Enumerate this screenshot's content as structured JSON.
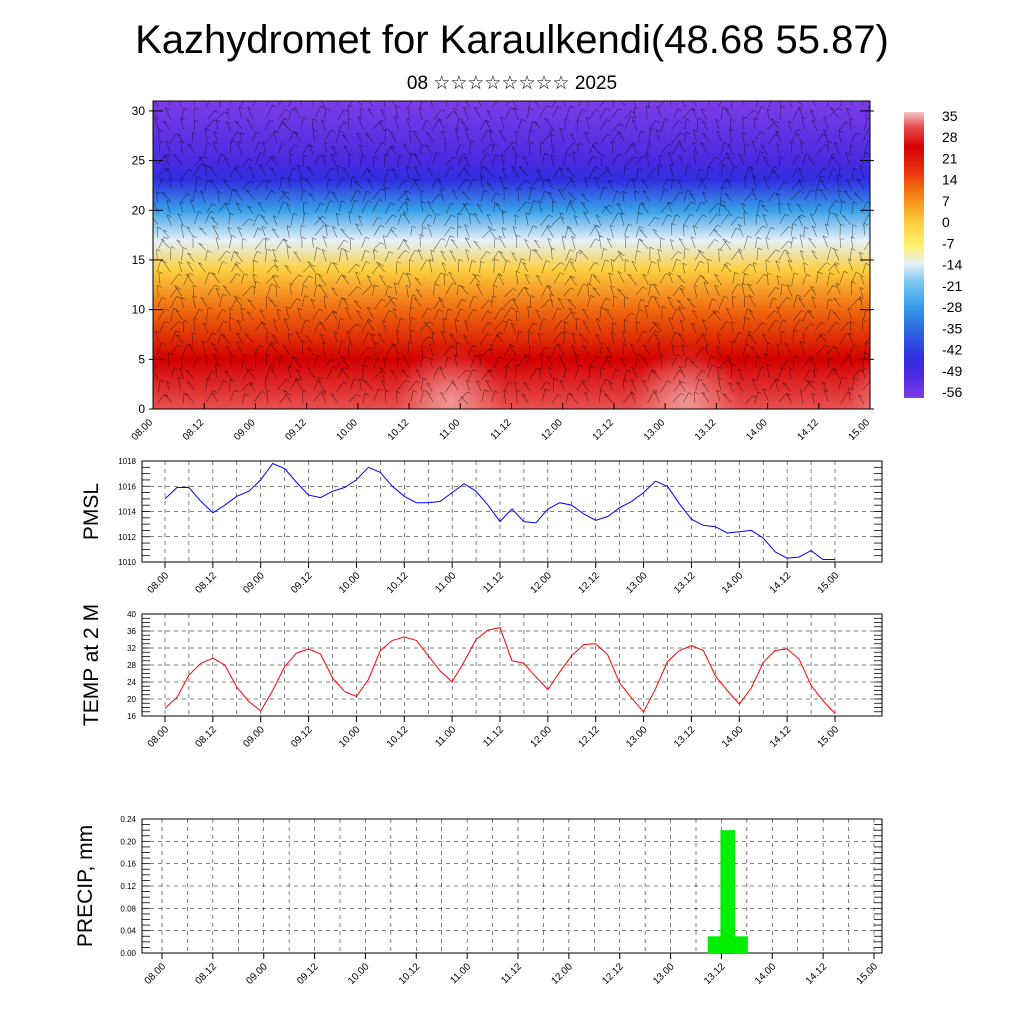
{
  "title": "Kazhydromet for Karaulkendi(48.68 55.87)",
  "subtitle": "08 ☆☆☆☆☆☆☆☆ 2025",
  "chart_data": [
    {
      "type": "heatmap",
      "panel": "cross-section",
      "x_ticks": [
        "08.00",
        "08.12",
        "09.00",
        "09.12",
        "10.00",
        "10.12",
        "11.00",
        "11.12",
        "12.00",
        "12.12",
        "13.00",
        "13.12",
        "14.00",
        "14.12",
        "15.00"
      ],
      "y_ticks": [
        "0",
        "5",
        "10",
        "15",
        "20",
        "25",
        "30"
      ],
      "ylim": [
        0,
        31
      ],
      "colorbar_labels": [
        "35",
        "28",
        "21",
        "14",
        "7",
        "0",
        "-7",
        "-14",
        "-21",
        "-28",
        "-35",
        "-42",
        "-49",
        "-56"
      ],
      "colorbar_range": [
        -60,
        38
      ],
      "colors": {
        "warm": "#cc0000",
        "hot": "#f4a0a0",
        "mild": "#ffe040",
        "cool": "#6ab8f0",
        "cold": "#3c2cdc",
        "coldest": "#7e3ce8"
      },
      "description_levels": [
        {
          "height": 0,
          "temp": 33
        },
        {
          "height": 5,
          "temp": 26
        },
        {
          "height": 10,
          "temp": 14
        },
        {
          "height": 14,
          "temp": 3
        },
        {
          "height": 17,
          "temp": -12
        },
        {
          "height": 20,
          "temp": -28
        },
        {
          "height": 23,
          "temp": -45
        },
        {
          "height": 25,
          "temp": -55
        },
        {
          "height": 31,
          "temp": -57
        }
      ]
    },
    {
      "type": "line",
      "ylabel": "PMSL",
      "ylim": [
        1010,
        1018
      ],
      "y_ticks": [
        "1010",
        "1012",
        "1014",
        "1016",
        "1018"
      ],
      "x_ticks": [
        "08.00",
        "08.12",
        "09.00",
        "09.12",
        "10.00",
        "10.12",
        "11.00",
        "11.12",
        "12.00",
        "12.12",
        "13.00",
        "13.12",
        "14.00",
        "14.12",
        "15.00"
      ],
      "color": "#0000ff",
      "values": [
        1015.0,
        1015.9,
        1015.9,
        1014.8,
        1013.9,
        1014.5,
        1015.2,
        1015.6,
        1016.5,
        1017.8,
        1017.4,
        1016.3,
        1015.3,
        1015.1,
        1015.6,
        1015.9,
        1016.5,
        1017.5,
        1017.1,
        1016.0,
        1015.2,
        1014.7,
        1014.7,
        1014.8,
        1015.5,
        1016.2,
        1015.6,
        1014.5,
        1013.2,
        1014.2,
        1013.2,
        1013.1,
        1014.2,
        1014.7,
        1014.5,
        1013.8,
        1013.3,
        1013.6,
        1014.3,
        1014.8,
        1015.5,
        1016.4,
        1016.0,
        1014.6,
        1013.4,
        1012.9,
        1012.8,
        1012.3,
        1012.4,
        1012.5,
        1011.9,
        1010.8,
        1010.3,
        1010.4,
        1010.9,
        1010.2,
        1010.2
      ]
    },
    {
      "type": "line",
      "ylabel": "TEMP at 2 M",
      "ylim": [
        16,
        40
      ],
      "y_ticks": [
        "16",
        "20",
        "24",
        "28",
        "32",
        "36",
        "40"
      ],
      "x_ticks": [
        "08.00",
        "08.12",
        "09.00",
        "09.12",
        "10.00",
        "10.12",
        "11.00",
        "11.12",
        "12.00",
        "12.12",
        "13.00",
        "13.12",
        "14.00",
        "14.12",
        "15.00"
      ],
      "color": "#ff0000",
      "values": [
        17.8,
        20.4,
        25.6,
        28.4,
        29.6,
        28.0,
        22.8,
        19.4,
        17.2,
        22.0,
        27.6,
        30.8,
        31.8,
        30.6,
        25.0,
        21.8,
        20.6,
        24.6,
        31.4,
        33.8,
        34.6,
        33.8,
        30.2,
        26.6,
        24.0,
        28.8,
        34.0,
        36.2,
        36.8,
        29.0,
        28.4,
        25.2,
        22.2,
        26.4,
        30.2,
        32.8,
        33.0,
        30.4,
        23.8,
        20.2,
        17.0,
        22.4,
        28.8,
        31.4,
        32.6,
        31.4,
        25.4,
        22.0,
        18.8,
        22.6,
        28.6,
        31.4,
        31.8,
        29.4,
        23.2,
        19.6,
        16.6
      ]
    },
    {
      "type": "bar",
      "ylabel": "PRECIP, mm",
      "ylim": [
        0,
        0.24
      ],
      "y_ticks": [
        "0.00",
        "0.04",
        "0.08",
        "0.12",
        "0.16",
        "0.20",
        "0.24"
      ],
      "x_ticks": [
        "08.00",
        "08.12",
        "09.00",
        "09.12",
        "10.00",
        "10.12",
        "11.00",
        "11.12",
        "12.00",
        "12.12",
        "13.00",
        "13.12",
        "14.00",
        "14.12",
        "15.00"
      ],
      "color": "#00ee00",
      "bars": [
        {
          "x": 43.5,
          "value": 0.03
        },
        {
          "x": 44.5,
          "value": 0.22
        },
        {
          "x": 45.5,
          "value": 0.03
        }
      ]
    }
  ]
}
